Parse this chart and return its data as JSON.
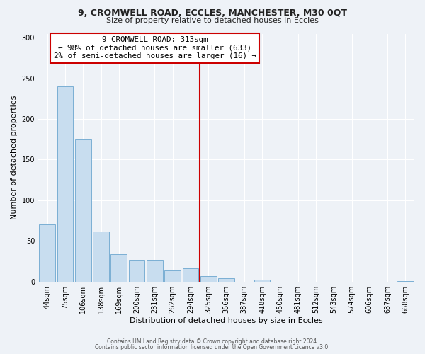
{
  "title_line1": "9, CROMWELL ROAD, ECCLES, MANCHESTER, M30 0QT",
  "title_line2": "Size of property relative to detached houses in Eccles",
  "xlabel": "Distribution of detached houses by size in Eccles",
  "ylabel": "Number of detached properties",
  "footer_line1": "Contains HM Land Registry data © Crown copyright and database right 2024.",
  "footer_line2": "Contains public sector information licensed under the Open Government Licence v3.0.",
  "bar_labels": [
    "44sqm",
    "75sqm",
    "106sqm",
    "138sqm",
    "169sqm",
    "200sqm",
    "231sqm",
    "262sqm",
    "294sqm",
    "325sqm",
    "356sqm",
    "387sqm",
    "418sqm",
    "450sqm",
    "481sqm",
    "512sqm",
    "543sqm",
    "574sqm",
    "606sqm",
    "637sqm",
    "668sqm"
  ],
  "bar_values": [
    70,
    240,
    175,
    62,
    34,
    27,
    27,
    14,
    16,
    7,
    4,
    0,
    2,
    0,
    0,
    0,
    0,
    0,
    0,
    0,
    1
  ],
  "bar_color": "#c8ddef",
  "bar_edge_color": "#7bafd4",
  "reference_line_x": 9.0,
  "reference_line_color": "#cc0000",
  "annotation_box_text_line1": "9 CROMWELL ROAD: 313sqm",
  "annotation_box_text_line2": "← 98% of detached houses are smaller (633)",
  "annotation_box_text_line3": "2% of semi-detached houses are larger (16) →",
  "annotation_box_edge_color": "#cc0000",
  "annotation_box_face_color": "#ffffff",
  "ylim": [
    0,
    305
  ],
  "yticks": [
    0,
    50,
    100,
    150,
    200,
    250,
    300
  ],
  "background_color": "#eef2f7",
  "grid_color": "#ffffff",
  "title_fontsize": 9,
  "subtitle_fontsize": 8,
  "axis_label_fontsize": 8,
  "tick_fontsize": 7,
  "footer_fontsize": 5.5
}
